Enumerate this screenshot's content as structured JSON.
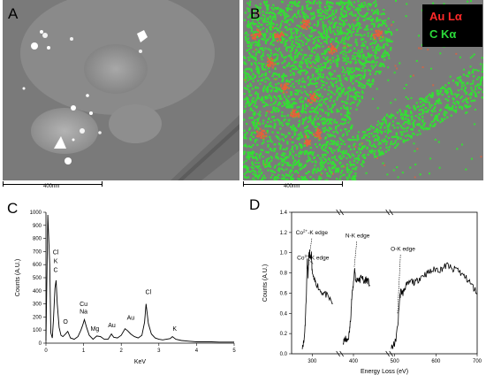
{
  "panels": {
    "a": {
      "letter": "A",
      "scale_label": "400nm"
    },
    "b": {
      "letter": "B",
      "scale_label": "400nm"
    },
    "c": {
      "letter": "C"
    },
    "d": {
      "letter": "D"
    }
  },
  "legend": [
    {
      "label": "Au Lα",
      "color": "#ff2a2a"
    },
    {
      "label": "C Kα",
      "color": "#2bd93a"
    }
  ],
  "map_colors": {
    "carbon": "#33e033",
    "gold": "#e8603a",
    "background": "#7b7b7b"
  },
  "chart_data": [
    {
      "type": "line",
      "panel": "C",
      "xlabel": "KeV",
      "ylabel": "Counts (A.U.)",
      "xlim": [
        0,
        5
      ],
      "ylim": [
        0,
        1000
      ],
      "xticks": [
        0,
        1,
        2,
        3,
        4,
        5
      ],
      "yticks": [
        0,
        100,
        200,
        300,
        400,
        500,
        600,
        700,
        800,
        900,
        1000
      ],
      "series": [
        {
          "x": [
            0.0,
            0.05,
            0.1,
            0.13,
            0.17,
            0.2,
            0.24,
            0.27,
            0.3,
            0.35,
            0.4,
            0.45,
            0.52,
            0.58,
            0.65,
            0.75,
            0.85,
            0.93,
            0.98,
            1.02,
            1.08,
            1.15,
            1.25,
            1.35,
            1.45,
            1.55,
            1.65,
            1.74,
            1.8,
            1.9,
            2.0,
            2.1,
            2.17,
            2.25,
            2.35,
            2.45,
            2.55,
            2.62,
            2.66,
            2.72,
            2.8,
            2.9,
            3.0,
            3.1,
            3.2,
            3.3,
            3.36,
            3.45,
            3.6,
            3.8,
            4.0,
            4.2,
            4.4,
            4.6,
            4.8,
            5.0
          ],
          "y": [
            20,
            980,
            600,
            80,
            40,
            180,
            420,
            480,
            300,
            120,
            60,
            50,
            70,
            90,
            40,
            30,
            50,
            100,
            140,
            180,
            120,
            60,
            30,
            55,
            50,
            30,
            30,
            70,
            45,
            40,
            60,
            110,
            95,
            70,
            50,
            40,
            60,
            160,
            300,
            150,
            70,
            40,
            30,
            25,
            30,
            35,
            50,
            30,
            20,
            15,
            10,
            10,
            10,
            8,
            8,
            8
          ]
        }
      ],
      "annotations": [
        {
          "text": "Cl",
          "x": 0.26,
          "y": 680
        },
        {
          "text": "K",
          "x": 0.26,
          "y": 610
        },
        {
          "text": "C",
          "x": 0.26,
          "y": 545
        },
        {
          "text": "O",
          "x": 0.52,
          "y": 150
        },
        {
          "text": "Cu",
          "x": 1.0,
          "y": 285
        },
        {
          "text": "Na",
          "x": 1.0,
          "y": 225
        },
        {
          "text": "Mg",
          "x": 1.3,
          "y": 95
        },
        {
          "text": "Au",
          "x": 1.75,
          "y": 120
        },
        {
          "text": "Au",
          "x": 2.25,
          "y": 180
        },
        {
          "text": "Cl",
          "x": 2.72,
          "y": 375
        },
        {
          "text": "K",
          "x": 3.42,
          "y": 95
        }
      ]
    },
    {
      "type": "line",
      "panel": "D",
      "xlabel": "Energy Loss (eV)",
      "ylabel": "Counts (A.U.)",
      "xlim": [
        250,
        700
      ],
      "ylim": [
        0,
        1.4
      ],
      "xticks": [
        300,
        400,
        500,
        600,
        700
      ],
      "yticks": [
        0.0,
        0.2,
        0.4,
        0.6,
        0.8,
        1.0,
        1.2,
        1.4
      ],
      "axis_breaks": [
        350,
        500
      ],
      "series": [
        {
          "x": [
            276,
            280,
            283,
            286,
            288,
            290,
            292,
            294,
            296,
            298,
            300,
            305,
            310,
            320,
            330,
            340,
            350
          ],
          "y": [
            0.08,
            0.12,
            0.3,
            0.62,
            0.95,
            0.78,
            0.97,
            1.0,
            0.92,
            0.98,
            0.8,
            0.72,
            0.7,
            0.62,
            0.6,
            0.55,
            0.5
          ]
        },
        {
          "x": [
            375,
            380,
            385,
            390,
            393,
            396,
            400,
            403,
            406,
            410,
            415,
            420,
            425,
            430,
            435,
            440
          ],
          "y": [
            0.1,
            0.15,
            0.12,
            0.2,
            0.35,
            0.55,
            0.7,
            0.85,
            0.7,
            0.75,
            0.72,
            0.78,
            0.7,
            0.74,
            0.72,
            0.68
          ]
        },
        {
          "x": [
            492,
            497,
            502,
            508,
            512,
            515,
            520,
            525,
            530,
            540,
            550,
            560,
            570,
            580,
            590,
            600,
            610,
            620,
            630,
            640,
            650,
            660,
            670,
            680,
            690,
            700
          ],
          "y": [
            0.05,
            0.08,
            0.12,
            0.3,
            0.55,
            0.62,
            0.6,
            0.66,
            0.68,
            0.72,
            0.7,
            0.75,
            0.78,
            0.8,
            0.82,
            0.84,
            0.83,
            0.86,
            0.88,
            0.82,
            0.85,
            0.8,
            0.76,
            0.72,
            0.66,
            0.6
          ]
        }
      ],
      "annotations": [
        {
          "text": "Co",
          "sup": "2+",
          "suffix": "-K edge",
          "x": 299,
          "y": 1.18
        },
        {
          "text": "Co",
          "sup": "3+",
          "suffix": "-K edge",
          "x": 302,
          "y": 0.93
        },
        {
          "text": "N-K edge",
          "x": 410,
          "y": 1.15
        },
        {
          "text": "O-K edge",
          "x": 520,
          "y": 1.02
        }
      ]
    }
  ]
}
